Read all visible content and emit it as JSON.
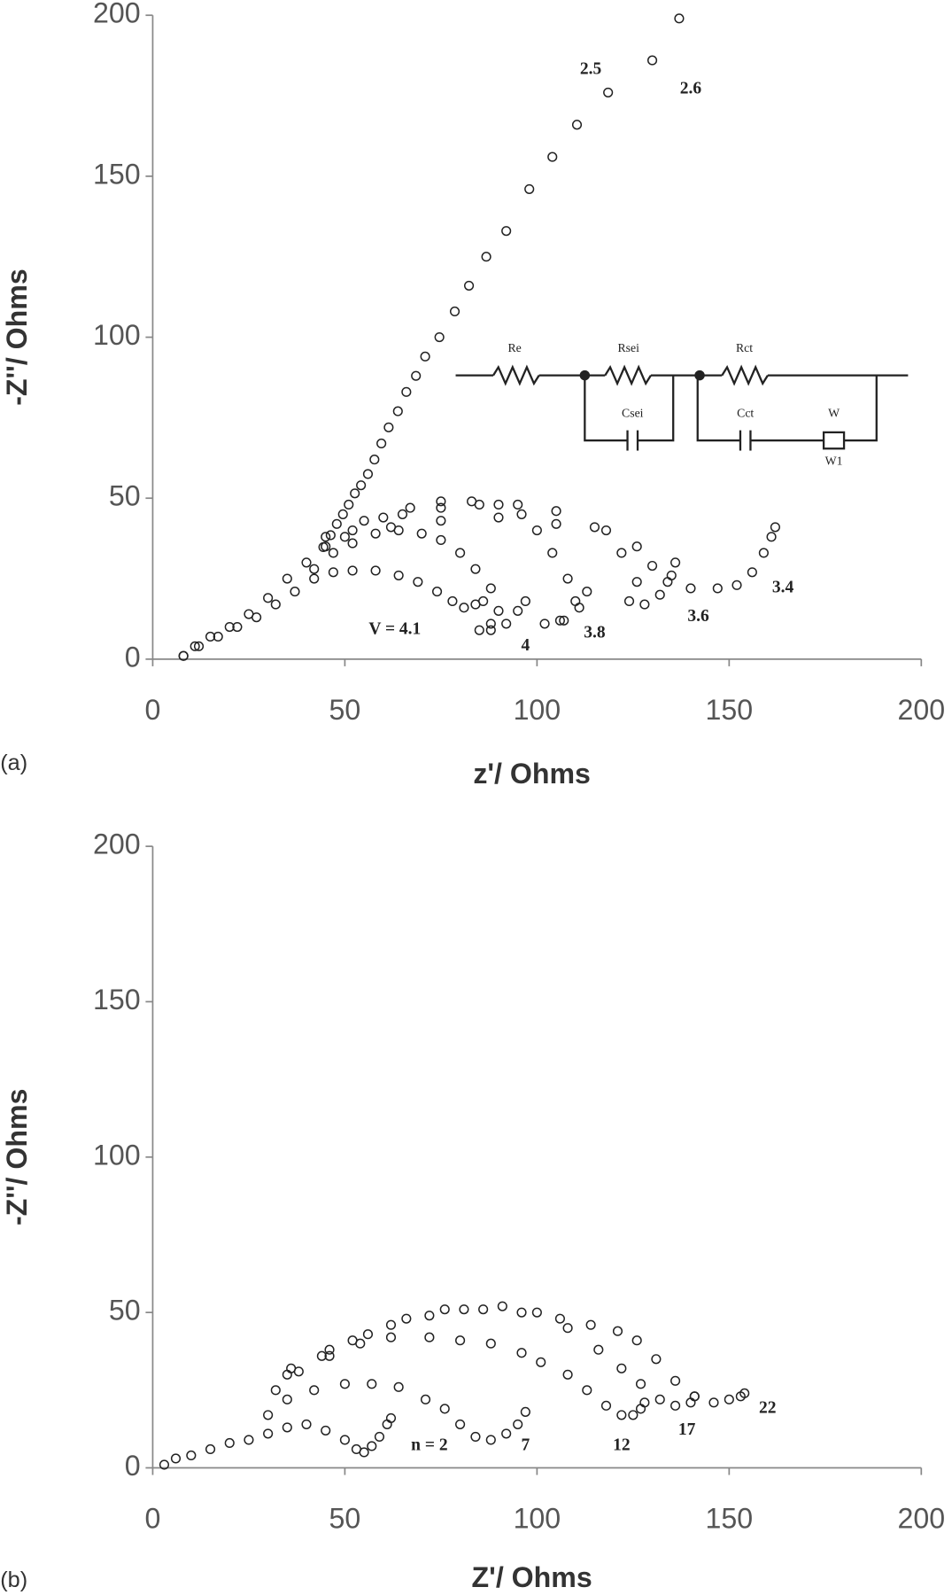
{
  "chart_data": [
    {
      "type": "scatter",
      "panel_label": "(a)",
      "x_label": "z'/ Ohms",
      "y_label": "-Z''/ Ohms",
      "xlim": [
        0,
        200
      ],
      "ylim": [
        0,
        200
      ],
      "xticks": [
        0,
        50,
        100,
        150,
        200
      ],
      "yticks": [
        0,
        50,
        100,
        150,
        200
      ],
      "marker": "open-circle",
      "grid": false,
      "annotations": [
        "2.5"
      ],
      "inset_labels": [
        "Re",
        "Rsei",
        "Csei",
        "Rct",
        "Cct",
        "W",
        "W1"
      ],
      "series": [
        {
          "name": "V = 4.1",
          "color": "#222",
          "x": [
            8,
            12,
            17,
            22,
            27,
            32,
            37,
            42,
            47,
            52,
            58,
            64,
            69,
            74,
            78,
            81,
            84,
            86
          ],
          "values": [
            1,
            4,
            7,
            10,
            13,
            17,
            21,
            25,
            27,
            27.5,
            27.5,
            26,
            24,
            21,
            18,
            16,
            17,
            18
          ]
        },
        {
          "name": "4",
          "color": "#222",
          "x": [
            42,
            47,
            52,
            58,
            64,
            70,
            75,
            80,
            84,
            88,
            90,
            88,
            85,
            88,
            92,
            95,
            97
          ],
          "values": [
            28,
            33,
            36,
            39,
            40,
            39,
            37,
            33,
            28,
            22,
            15,
            11,
            9,
            9,
            11,
            15,
            18
          ]
        },
        {
          "name": "3.8",
          "color": "#222",
          "x": [
            45,
            52,
            60,
            67,
            75,
            83,
            90,
            96,
            100,
            104,
            108,
            110,
            106,
            102,
            107,
            111,
            113
          ],
          "values": [
            35,
            40,
            44,
            47,
            49,
            49,
            48,
            45,
            40,
            33,
            25,
            18,
            12,
            11,
            12,
            16,
            21
          ]
        },
        {
          "name": "3.6",
          "color": "#222",
          "x": [
            45,
            55,
            65,
            75,
            85,
            95,
            105,
            115,
            122,
            126,
            124,
            128,
            132,
            135,
            136
          ],
          "values": [
            38,
            43,
            45,
            47,
            48,
            48,
            46,
            41,
            33,
            24,
            18,
            17,
            20,
            26,
            30
          ]
        },
        {
          "name": "3.4",
          "color": "#222",
          "x": [
            50,
            62,
            75,
            90,
            105,
            118,
            126,
            130,
            134,
            140,
            147,
            152,
            156,
            159,
            161,
            162
          ],
          "values": [
            38,
            41,
            43,
            44,
            42,
            40,
            35,
            29,
            24,
            22,
            22,
            23,
            27,
            33,
            38,
            41
          ]
        },
        {
          "name": "2.6",
          "color": "#222",
          "x": [
            8,
            11,
            15,
            20,
            25,
            30,
            35,
            40,
            44.4,
            46.3,
            47.9,
            49.5,
            51,
            52.6,
            54.2,
            56,
            57.7,
            59.5,
            61.4,
            63.8,
            66,
            68.5,
            70.9,
            74.6,
            78.6,
            82.3,
            86.8,
            92,
            98,
            104,
            110.4,
            118.5,
            130,
            137
          ],
          "values": [
            1,
            4,
            7,
            10,
            14,
            19,
            25,
            30,
            34.8,
            38.5,
            42,
            45,
            48,
            51.5,
            54,
            57.5,
            62,
            67,
            72,
            77,
            83,
            88,
            94,
            100,
            108,
            116,
            125,
            133,
            146,
            156,
            166,
            176,
            186,
            199
          ]
        }
      ]
    },
    {
      "type": "scatter",
      "panel_label": "(b)",
      "x_label": "Z'/ Ohms",
      "y_label": "-Z''/ Ohms",
      "xlim": [
        0,
        200
      ],
      "ylim": [
        0,
        200
      ],
      "xticks": [
        0,
        50,
        100,
        150,
        200
      ],
      "yticks": [
        0,
        50,
        100,
        150,
        200
      ],
      "marker": "open-circle",
      "grid": false,
      "series": [
        {
          "name": "n = 2",
          "color": "#222",
          "x": [
            3,
            6,
            10,
            15,
            20,
            25,
            30,
            35,
            40,
            45,
            50,
            53,
            55,
            57,
            59,
            61,
            62
          ],
          "values": [
            1,
            3,
            4,
            6,
            8,
            9,
            11,
            13,
            14,
            12,
            9,
            6,
            5,
            7,
            10,
            14,
            16
          ]
        },
        {
          "name": "7",
          "color": "#222",
          "x": [
            30,
            35,
            42,
            50,
            57,
            64,
            71,
            76,
            80,
            84,
            88,
            92,
            95,
            97
          ],
          "values": [
            17,
            22,
            25,
            27,
            27,
            26,
            22,
            19,
            14,
            10,
            9,
            11,
            14,
            18
          ]
        },
        {
          "name": "12",
          "color": "#222",
          "x": [
            32,
            38,
            46,
            54,
            62,
            72,
            80,
            88,
            96,
            101,
            108,
            113,
            118,
            122,
            125,
            127,
            128
          ],
          "values": [
            25,
            31,
            36,
            40,
            42,
            42,
            41,
            40,
            37,
            34,
            30,
            25,
            20,
            17,
            17,
            19,
            21
          ]
        },
        {
          "name": "17",
          "color": "#222",
          "x": [
            35,
            44,
            52,
            62,
            72,
            81,
            91,
            100,
            108,
            116,
            122,
            127,
            132,
            136,
            140,
            141
          ],
          "values": [
            30,
            36,
            41,
            46,
            49,
            51,
            52,
            50,
            45,
            38,
            32,
            27,
            22,
            20,
            21,
            23
          ]
        },
        {
          "name": "22",
          "color": "#222",
          "x": [
            36,
            46,
            56,
            66,
            76,
            86,
            96,
            106,
            114,
            121,
            126,
            131,
            136,
            141,
            146,
            150,
            153,
            154
          ],
          "values": [
            32,
            38,
            43,
            48,
            51,
            51,
            50,
            48,
            46,
            44,
            41,
            35,
            28,
            23,
            21,
            22,
            23,
            24
          ]
        }
      ]
    }
  ]
}
